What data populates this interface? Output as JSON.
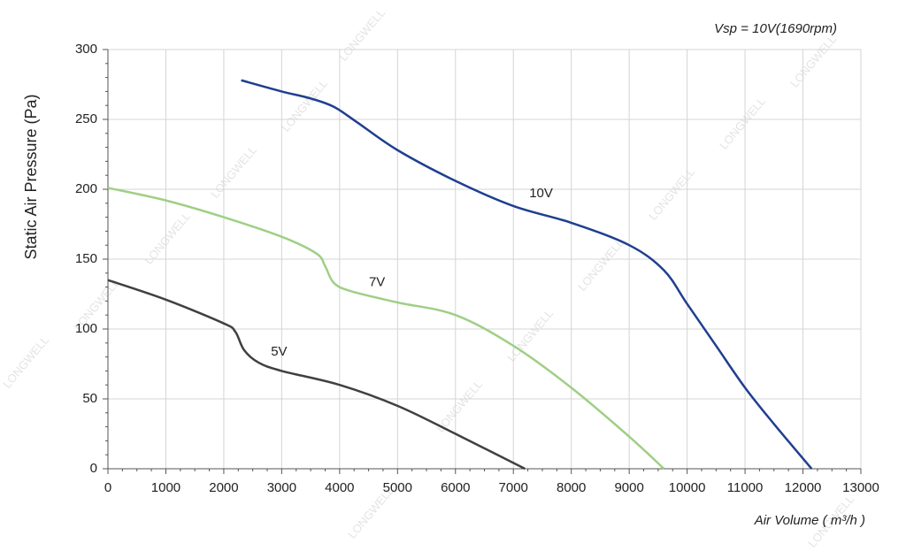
{
  "chart_data": {
    "type": "line",
    "title": "Vsp = 10V(1690rpm)",
    "watermark": "LONGWELL",
    "x_label": "Air Volume ( m³/h )",
    "y_label": "Static Air Pressure  (Pa)",
    "xlim": [
      0,
      13000
    ],
    "ylim": [
      0,
      300
    ],
    "xticks": [
      0,
      1000,
      2000,
      3000,
      4000,
      5000,
      6000,
      7000,
      8000,
      9000,
      10000,
      11000,
      12000,
      13000
    ],
    "yticks": [
      0,
      50,
      100,
      150,
      200,
      250,
      300
    ],
    "grid": true,
    "series": [
      {
        "name": "10V",
        "color": "#1f3f8f",
        "x": [
          2300,
          3000,
          3500,
          3900,
          4300,
          5000,
          6000,
          7000,
          8000,
          9000,
          9600,
          10000,
          10500,
          11000,
          11500,
          12150
        ],
        "values": [
          278,
          270,
          265,
          259,
          248,
          228,
          206,
          188,
          176,
          160,
          142,
          118,
          88,
          58,
          32,
          0
        ]
      },
      {
        "name": "7V",
        "color": "#9fcf85",
        "x": [
          0,
          1000,
          2000,
          3000,
          3600,
          3750,
          3900,
          4200,
          5000,
          6000,
          7000,
          8000,
          9000,
          9600
        ],
        "values": [
          201,
          192,
          180,
          166,
          154,
          145,
          133,
          127,
          119,
          110,
          88,
          58,
          23,
          0
        ]
      },
      {
        "name": "5V",
        "color": "#404040",
        "x": [
          0,
          1000,
          2000,
          2200,
          2350,
          2600,
          3000,
          4000,
          5000,
          6000,
          7200
        ],
        "values": [
          135,
          121,
          104,
          98,
          85,
          76,
          70,
          60,
          45,
          25,
          0
        ]
      }
    ]
  }
}
